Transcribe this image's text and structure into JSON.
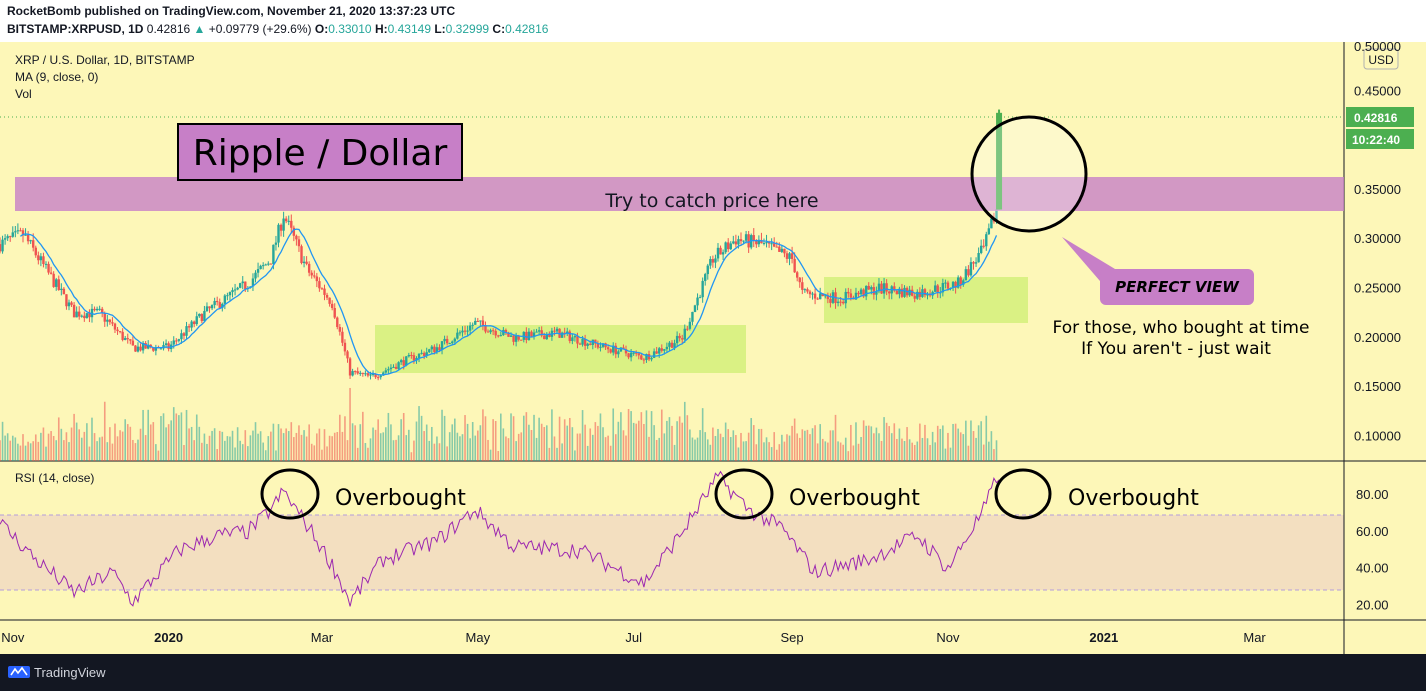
{
  "header": {
    "publisher_line": "RocketBomb published on TradingView.com, November 21, 2020 13:37:23 UTC",
    "symbol": "BITSTAMP:XRPUSD, 1D",
    "last": "0.42816",
    "change": "+0.09779 (+29.6%)",
    "open_label": "O:",
    "open": "0.33010",
    "high_label": "H:",
    "high": "0.43149",
    "low_label": "L:",
    "low": "0.32999",
    "close_label": "C:",
    "close": "0.42816"
  },
  "legend": {
    "title": "XRP / U.S. Dollar, 1D, BITSTAMP",
    "ma": "MA (9, close, 0)",
    "vol": "Vol",
    "rsi": "RSI (14, close)"
  },
  "price_axis": {
    "currency": "USD",
    "last_price": "0.42816",
    "countdown": "10:22:40",
    "top_partial": "0.50000"
  },
  "annotations": {
    "main_title": "Ripple / Dollar",
    "zone_label": "Try to catch price here",
    "perfect_view": "PERFECT VIEW",
    "note_line1": "For those, who bought at time",
    "note_line2": "If You aren't - just wait",
    "overbought_1": "Overbought",
    "overbought_2": "Overbought",
    "overbought_3": "Overbought"
  },
  "footer": {
    "brand": "TradingView"
  },
  "colors": {
    "background": "#fdf7b8",
    "up_candle": "#26a69a",
    "down_candle": "#ef5350",
    "ma_line": "#2196f3",
    "rsi_line": "#9c27b0",
    "zone": "#c77fc7",
    "accumulation": "#d4f07a",
    "last_price_tag": "#4caf50"
  },
  "chart_data": [
    {
      "type": "candlestick",
      "title": "XRP / U.S. Dollar, 1D, BITSTAMP",
      "x_ticks": [
        "Nov",
        "2020",
        "Mar",
        "May",
        "Jul",
        "Sep",
        "Nov",
        "2021",
        "Mar"
      ],
      "y_ticks": [
        0.1,
        0.15,
        0.2,
        0.25,
        0.3,
        0.35,
        0.45
      ],
      "ylim": [
        0.075,
        0.5
      ],
      "x_range": [
        "2019-10-27",
        "2021-04-05"
      ],
      "close_path": [
        {
          "date": "2019-10-27",
          "close": 0.295
        },
        {
          "date": "2019-11-05",
          "close": 0.305
        },
        {
          "date": "2019-11-15",
          "close": 0.265
        },
        {
          "date": "2019-11-25",
          "close": 0.225
        },
        {
          "date": "2019-12-05",
          "close": 0.225
        },
        {
          "date": "2019-12-18",
          "close": 0.19
        },
        {
          "date": "2020-01-01",
          "close": 0.19
        },
        {
          "date": "2020-01-15",
          "close": 0.225
        },
        {
          "date": "2020-02-01",
          "close": 0.255
        },
        {
          "date": "2020-02-10",
          "close": 0.28
        },
        {
          "date": "2020-02-15",
          "close": 0.325
        },
        {
          "date": "2020-02-24",
          "close": 0.27
        },
        {
          "date": "2020-03-05",
          "close": 0.235
        },
        {
          "date": "2020-03-12",
          "close": 0.165
        },
        {
          "date": "2020-03-20",
          "close": 0.16
        },
        {
          "date": "2020-04-01",
          "close": 0.175
        },
        {
          "date": "2020-04-15",
          "close": 0.19
        },
        {
          "date": "2020-04-30",
          "close": 0.215
        },
        {
          "date": "2020-05-15",
          "close": 0.2
        },
        {
          "date": "2020-06-01",
          "close": 0.205
        },
        {
          "date": "2020-06-20",
          "close": 0.19
        },
        {
          "date": "2020-07-05",
          "close": 0.18
        },
        {
          "date": "2020-07-20",
          "close": 0.2
        },
        {
          "date": "2020-08-01",
          "close": 0.28
        },
        {
          "date": "2020-08-10",
          "close": 0.3
        },
        {
          "date": "2020-08-20",
          "close": 0.295
        },
        {
          "date": "2020-09-01",
          "close": 0.28
        },
        {
          "date": "2020-09-05",
          "close": 0.245
        },
        {
          "date": "2020-09-20",
          "close": 0.24
        },
        {
          "date": "2020-10-05",
          "close": 0.25
        },
        {
          "date": "2020-10-20",
          "close": 0.245
        },
        {
          "date": "2020-11-05",
          "close": 0.255
        },
        {
          "date": "2020-11-15",
          "close": 0.29
        },
        {
          "date": "2020-11-20",
          "close": 0.33
        },
        {
          "date": "2020-11-21",
          "close": 0.42816
        }
      ],
      "last_candle": {
        "open": 0.3301,
        "high": 0.43149,
        "low": 0.32999,
        "close": 0.42816
      },
      "resistance_zone": [
        0.33,
        0.365
      ],
      "ranges": [
        {
          "from": "2020-03-25",
          "to": "2020-08-05",
          "low": 0.165,
          "high": 0.215
        },
        {
          "from": "2020-09-05",
          "to": "2020-11-20",
          "low": 0.218,
          "high": 0.265
        }
      ]
    },
    {
      "type": "line",
      "title": "RSI (14, close)",
      "y_ticks": [
        20.0,
        40.0,
        60.0,
        80.0
      ],
      "ylim": [
        12,
        98
      ],
      "band": [
        30,
        70
      ],
      "points": [
        {
          "date": "2019-10-27",
          "value": 65
        },
        {
          "date": "2019-11-10",
          "value": 45
        },
        {
          "date": "2019-11-25",
          "value": 27
        },
        {
          "date": "2019-12-10",
          "value": 38
        },
        {
          "date": "2019-12-18",
          "value": 22
        },
        {
          "date": "2020-01-05",
          "value": 50
        },
        {
          "date": "2020-01-20",
          "value": 58
        },
        {
          "date": "2020-02-01",
          "value": 60
        },
        {
          "date": "2020-02-10",
          "value": 72
        },
        {
          "date": "2020-02-15",
          "value": 82
        },
        {
          "date": "2020-02-25",
          "value": 62
        },
        {
          "date": "2020-03-05",
          "value": 42
        },
        {
          "date": "2020-03-12",
          "value": 22
        },
        {
          "date": "2020-03-25",
          "value": 45
        },
        {
          "date": "2020-04-15",
          "value": 55
        },
        {
          "date": "2020-04-30",
          "value": 72
        },
        {
          "date": "2020-05-15",
          "value": 52
        },
        {
          "date": "2020-06-10",
          "value": 50
        },
        {
          "date": "2020-07-05",
          "value": 32
        },
        {
          "date": "2020-07-20",
          "value": 60
        },
        {
          "date": "2020-08-03",
          "value": 90
        },
        {
          "date": "2020-08-15",
          "value": 72
        },
        {
          "date": "2020-08-28",
          "value": 62
        },
        {
          "date": "2020-09-10",
          "value": 38
        },
        {
          "date": "2020-10-01",
          "value": 45
        },
        {
          "date": "2020-10-20",
          "value": 58
        },
        {
          "date": "2020-11-01",
          "value": 40
        },
        {
          "date": "2020-11-15",
          "value": 72
        },
        {
          "date": "2020-11-21",
          "value": 92
        }
      ]
    }
  ]
}
